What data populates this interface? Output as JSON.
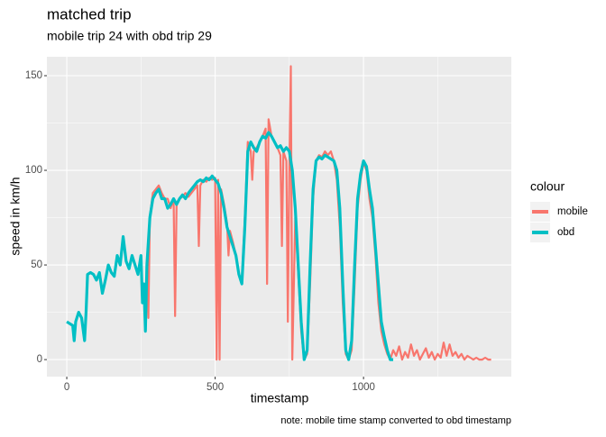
{
  "chart_data": {
    "type": "line",
    "title": "matched trip",
    "subtitle": "mobile trip 24 with obd trip 29",
    "x_label": "timestamp",
    "y_label": "speed in km/h",
    "caption": "note: mobile time stamp converted to obd timestamp",
    "legend_title": "colour",
    "legend_position": "right",
    "grid": true,
    "xlim": [
      -67,
      1498
    ],
    "ylim": [
      -9,
      160
    ],
    "xticks": [
      0,
      500,
      1000
    ],
    "yticks": [
      0,
      50,
      100,
      150
    ],
    "series": [
      {
        "name": "mobile",
        "color": "#F8766D",
        "x": [
          270,
          275,
          280,
          290,
          300,
          310,
          320,
          330,
          340,
          350,
          360,
          365,
          370,
          380,
          390,
          400,
          410,
          420,
          430,
          440,
          445,
          450,
          460,
          470,
          480,
          490,
          500,
          505,
          510,
          515,
          520,
          530,
          540,
          545,
          550,
          560,
          570,
          580,
          590,
          600,
          610,
          620,
          625,
          630,
          640,
          650,
          660,
          670,
          675,
          680,
          690,
          700,
          710,
          720,
          725,
          730,
          740,
          745,
          750,
          755,
          760,
          770,
          780,
          790,
          800,
          810,
          820,
          830,
          840,
          850,
          860,
          870,
          880,
          890,
          900,
          910,
          920,
          930,
          940,
          950,
          960,
          970,
          980,
          990,
          1000,
          1010,
          1020,
          1030,
          1040,
          1050,
          1060,
          1070,
          1080,
          1090,
          1100,
          1110,
          1120,
          1130,
          1140,
          1150,
          1160,
          1170,
          1180,
          1190,
          1200,
          1210,
          1220,
          1230,
          1240,
          1250,
          1260,
          1270,
          1280,
          1290,
          1300,
          1310,
          1320,
          1330,
          1340,
          1350,
          1360,
          1370,
          1380,
          1390,
          1400,
          1410,
          1420,
          1430
        ],
        "values": [
          50,
          22,
          75,
          88,
          90,
          92,
          88,
          85,
          85,
          80,
          85,
          23,
          82,
          85,
          86,
          88,
          86,
          88,
          90,
          92,
          60,
          92,
          95,
          94,
          96,
          95,
          96,
          0,
          95,
          0,
          90,
          82,
          72,
          55,
          68,
          62,
          55,
          45,
          42,
          75,
          115,
          110,
          95,
          110,
          112,
          115,
          118,
          122,
          40,
          127,
          118,
          115,
          112,
          108,
          60,
          110,
          105,
          20,
          100,
          155,
          0,
          75,
          45,
          15,
          0,
          3,
          40,
          85,
          105,
          108,
          107,
          110,
          108,
          110,
          105,
          95,
          70,
          30,
          3,
          0,
          5,
          40,
          80,
          95,
          104,
          100,
          85,
          75,
          55,
          30,
          15,
          8,
          3,
          0,
          5,
          2,
          7,
          0,
          4,
          1,
          8,
          2,
          5,
          0,
          3,
          6,
          1,
          4,
          0,
          3,
          1,
          9,
          2,
          8,
          2,
          4,
          1,
          3,
          0,
          2,
          1,
          0,
          1,
          0,
          0,
          1,
          0,
          0
        ]
      },
      {
        "name": "obd",
        "color": "#00BFC4",
        "x": [
          0,
          10,
          20,
          25,
          30,
          40,
          50,
          60,
          65,
          70,
          80,
          90,
          100,
          110,
          120,
          130,
          140,
          150,
          160,
          170,
          180,
          190,
          200,
          210,
          220,
          230,
          240,
          250,
          255,
          260,
          265,
          270,
          280,
          290,
          300,
          310,
          320,
          330,
          340,
          350,
          360,
          370,
          380,
          390,
          400,
          410,
          420,
          430,
          440,
          450,
          460,
          470,
          480,
          490,
          500,
          510,
          520,
          530,
          540,
          550,
          560,
          570,
          580,
          590,
          600,
          610,
          620,
          630,
          640,
          650,
          660,
          670,
          680,
          690,
          700,
          710,
          720,
          730,
          740,
          750,
          760,
          770,
          780,
          790,
          800,
          810,
          820,
          830,
          840,
          850,
          860,
          870,
          880,
          890,
          900,
          910,
          920,
          930,
          940,
          950,
          960,
          970,
          980,
          990,
          1000,
          1010,
          1020,
          1030,
          1040,
          1050,
          1060,
          1070,
          1080,
          1090,
          1100
        ],
        "values": [
          20,
          19,
          18,
          10,
          20,
          25,
          22,
          10,
          25,
          45,
          46,
          45,
          42,
          46,
          35,
          42,
          50,
          46,
          44,
          55,
          50,
          65,
          52,
          48,
          55,
          50,
          45,
          55,
          30,
          40,
          15,
          50,
          75,
          85,
          88,
          90,
          85,
          85,
          80,
          82,
          85,
          82,
          85,
          87,
          85,
          88,
          90,
          92,
          94,
          95,
          94,
          96,
          95,
          97,
          95,
          93,
          88,
          80,
          70,
          65,
          60,
          55,
          45,
          40,
          70,
          110,
          115,
          112,
          110,
          115,
          118,
          117,
          120,
          118,
          115,
          112,
          113,
          110,
          112,
          110,
          100,
          80,
          50,
          20,
          0,
          5,
          50,
          90,
          105,
          107,
          106,
          108,
          107,
          106,
          105,
          100,
          80,
          40,
          5,
          0,
          10,
          50,
          85,
          98,
          105,
          102,
          90,
          80,
          60,
          40,
          20,
          12,
          5,
          0,
          0
        ]
      }
    ]
  }
}
